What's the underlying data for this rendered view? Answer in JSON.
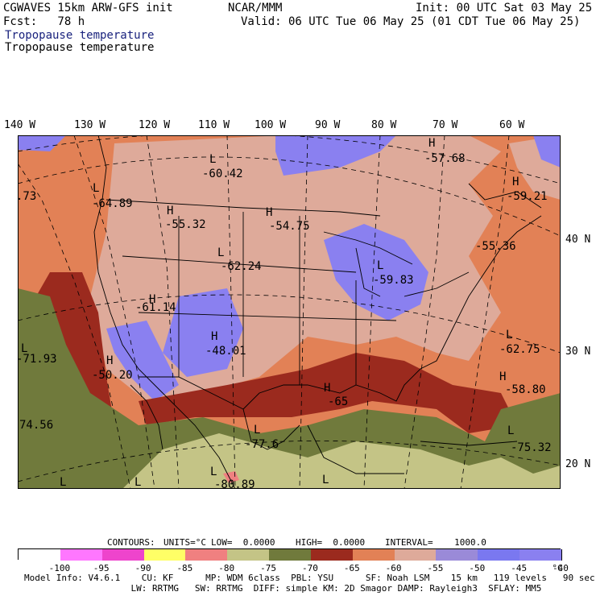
{
  "header": {
    "model": "CGWAVES 15km ARW-GFS init",
    "org": "NCAR/MMM",
    "init": "Init: 00 UTC Sat 03 May 25",
    "fcst": "Fcst:   78 h",
    "valid": "Valid: 06 UTC Tue 06 May 25 (01 CDT Tue 06 May 25)",
    "field1": "Tropopause temperature",
    "field2": "Tropopause temperature"
  },
  "lon_labels": [
    "140 W",
    "130 W",
    "120 W",
    "110 W",
    "100 W",
    "90 W",
    "80 W",
    "70 W",
    "60 W"
  ],
  "lat_labels": [
    "40 N",
    "30 N",
    "20 N"
  ],
  "map_labels": [
    {
      "id": "l-pac",
      "text": "L"
    },
    {
      "id": "v-pac",
      "text": "-71.93"
    },
    {
      "id": "h-sw",
      "text": "H"
    },
    {
      "id": "v-sw",
      "text": "-50.20"
    },
    {
      "id": "h-gb",
      "text": "H"
    },
    {
      "id": "v-gb",
      "text": "-61.14"
    },
    {
      "id": "l-nw",
      "text": "L"
    },
    {
      "id": "v-nw",
      "text": "-64.89"
    },
    {
      "id": "h-mt",
      "text": "H"
    },
    {
      "id": "v-mt",
      "text": "-55.32"
    },
    {
      "id": "l-bc",
      "text": "L"
    },
    {
      "id": "v-bc",
      "text": "-60.42"
    },
    {
      "id": "l-wy",
      "text": "L"
    },
    {
      "id": "v-wy",
      "text": "-62.24"
    },
    {
      "id": "h-tx",
      "text": "H"
    },
    {
      "id": "v-tx",
      "text": "-48.01"
    },
    {
      "id": "h-nd",
      "text": "H"
    },
    {
      "id": "v-nd",
      "text": "-54.75"
    },
    {
      "id": "l-gl",
      "text": "L"
    },
    {
      "id": "v-gl",
      "text": "-59.83"
    },
    {
      "id": "h-hud",
      "text": "H"
    },
    {
      "id": "v-hud",
      "text": "-57.68"
    },
    {
      "id": "h-lab",
      "text": "H"
    },
    {
      "id": "v-lab",
      "text": "-59.21"
    },
    {
      "id": "v-ne",
      "text": "-55.36"
    },
    {
      "id": "l-atl",
      "text": "L"
    },
    {
      "id": "v-atl",
      "text": "-62.75"
    },
    {
      "id": "h-atl",
      "text": "H"
    },
    {
      "id": "v-atl2",
      "text": "-58.80"
    },
    {
      "id": "h-gulf",
      "text": "H"
    },
    {
      "id": "v-gulf",
      "text": "-65"
    },
    {
      "id": "l-mx",
      "text": "L"
    },
    {
      "id": "v-mx",
      "text": "-77.6"
    },
    {
      "id": "l-car",
      "text": "L"
    },
    {
      "id": "v-car",
      "text": "-75.32"
    },
    {
      "id": "l-mx2",
      "text": "L"
    },
    {
      "id": "v-mx2",
      "text": "-80.89"
    },
    {
      "id": "v-pac2",
      "text": "74.56"
    },
    {
      "id": "v-left",
      "text": ".73"
    },
    {
      "id": "l-s1",
      "text": "L"
    },
    {
      "id": "l-s2",
      "text": "L"
    },
    {
      "id": "l-s3",
      "text": "L"
    }
  ],
  "contour_info": {
    "contours": "CONTOURS:",
    "units": "UNITS=°C",
    "low": "LOW=  0.0000",
    "high": "HIGH=  0.0000",
    "interval": "INTERVAL=    1000.0"
  },
  "colorbar": {
    "colors": [
      "#ffffff",
      "#ff77ff",
      "#ee44cc",
      "#ffff66",
      "#f08080",
      "#c4c486",
      "#707a3c",
      "#9b2a1e",
      "#e28156",
      "#deaa9a",
      "#9a8ad8",
      "#7a78f0",
      "#8a80f0"
    ],
    "labels": [
      "-100",
      "-95",
      "-90",
      "-85",
      "-80",
      "-75",
      "-70",
      "-65",
      "-60",
      "-55",
      "-50",
      "-45",
      "-40"
    ],
    "unit": "°C"
  },
  "footer": {
    "line1": "Model Info: V4.6.1    CU: KF      MP: WDM 6class  PBL: YSU      SF: Noah LSM    15 km   119 levels   90 sec",
    "line2": "                    LW: RRTMG   SW: RRTMG  DIFF: simple KM: 2D Smagor DAMP: Rayleigh3  SFLAY: MM5"
  }
}
